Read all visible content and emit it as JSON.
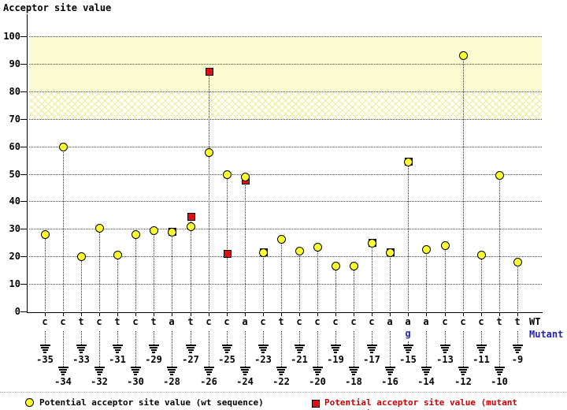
{
  "title": "Acceptor site value",
  "x_axis": {
    "wt_label": "WT",
    "mutant_label": "Mutant"
  },
  "legend": {
    "wt_label": "Potential acceptor site value (wt sequence)",
    "mutant_label": "Potential acceptor site value (mutant sequence)"
  },
  "colors": {
    "wt_marker": "#ffff2e",
    "mutant_marker": "#dd1111",
    "mutant_legend_text": "#cc0000",
    "mutant_letter_blue": "#2222bb",
    "high_band_yellow": "#fcfcd2"
  },
  "chart_data": {
    "type": "scatter",
    "title": "Acceptor site value",
    "ylabel": "Acceptor site value",
    "ylim": [
      0,
      107
    ],
    "y_ticks": [
      0,
      10,
      20,
      30,
      40,
      50,
      60,
      70,
      80,
      90,
      100
    ],
    "grid": "dotted horizontal at each tick",
    "bands": [
      {
        "range": [
          80,
          100
        ],
        "style": "solid pale yellow"
      },
      {
        "range": [
          70,
          80
        ],
        "style": "crosshatch pale yellow"
      }
    ],
    "legend_position": "bottom",
    "series_names": [
      "Potential acceptor site value (wt sequence)",
      "Potential acceptor site value (mutant sequence)"
    ],
    "points": [
      {
        "pos": -35,
        "base": "c",
        "wt": 28,
        "mut": null
      },
      {
        "pos": -34,
        "base": "c",
        "wt": 60,
        "mut": null
      },
      {
        "pos": -33,
        "base": "t",
        "wt": 20,
        "mut": null
      },
      {
        "pos": -32,
        "base": "c",
        "wt": 30.5,
        "mut": null
      },
      {
        "pos": -31,
        "base": "t",
        "wt": 20.5,
        "mut": null
      },
      {
        "pos": -30,
        "base": "c",
        "wt": 28,
        "mut": null
      },
      {
        "pos": -29,
        "base": "t",
        "wt": 29.5,
        "mut": null
      },
      {
        "pos": -28,
        "base": "a",
        "wt": 29,
        "mut": 29
      },
      {
        "pos": -27,
        "base": "t",
        "wt": 31,
        "mut": 34.5
      },
      {
        "pos": -26,
        "base": "c",
        "wt": 58,
        "mut": 87
      },
      {
        "pos": -25,
        "base": "c",
        "wt": 50,
        "mut": 21
      },
      {
        "pos": -24,
        "base": "a",
        "wt": 49,
        "mut": 47.5
      },
      {
        "pos": -23,
        "base": "c",
        "wt": 21.5,
        "mut": 21.5
      },
      {
        "pos": -22,
        "base": "t",
        "wt": 26.5,
        "mut": null
      },
      {
        "pos": -21,
        "base": "c",
        "wt": 22,
        "mut": null
      },
      {
        "pos": -20,
        "base": "c",
        "wt": 23.5,
        "mut": null
      },
      {
        "pos": -19,
        "base": "c",
        "wt": 16.5,
        "mut": null
      },
      {
        "pos": -18,
        "base": "c",
        "wt": 16.5,
        "mut": null
      },
      {
        "pos": -17,
        "base": "c",
        "wt": 25,
        "mut": 25
      },
      {
        "pos": -16,
        "base": "a",
        "wt": 21.5,
        "mut": 21.5
      },
      {
        "pos": -15,
        "base": "a",
        "mutant_base": "g",
        "wt": 54.5,
        "mut": 54.5
      },
      {
        "pos": -14,
        "base": "a",
        "wt": 22.5,
        "mut": null
      },
      {
        "pos": -13,
        "base": "c",
        "wt": 24,
        "mut": null
      },
      {
        "pos": -12,
        "base": "c",
        "wt": 93,
        "mut": null
      },
      {
        "pos": -11,
        "base": "c",
        "wt": 20.5,
        "mut": null
      },
      {
        "pos": -10,
        "base": "t",
        "wt": 49.5,
        "mut": null
      },
      {
        "pos": -9,
        "base": "t",
        "wt": 18,
        "mut": null
      }
    ]
  }
}
